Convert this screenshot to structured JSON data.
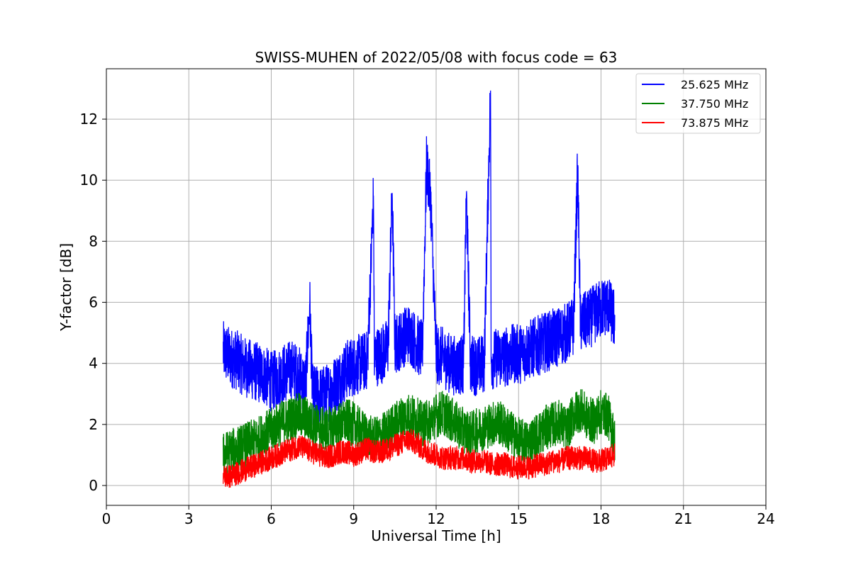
{
  "chart_data": {
    "type": "line",
    "title": "SWISS-MUHEN of 2022/05/08 with focus code = 63",
    "xlabel": "Universal Time [h]",
    "ylabel": "Y-factor [dB]",
    "xlim": [
      0,
      24
    ],
    "ylim": [
      -0.65,
      13.65
    ],
    "xticks": [
      0,
      3,
      6,
      9,
      12,
      15,
      18,
      21,
      24
    ],
    "yticks": [
      0,
      2,
      4,
      6,
      8,
      10,
      12
    ],
    "grid": true,
    "legend_position": "top-right",
    "series": [
      {
        "name": "25.625 MHz",
        "color": "#0000ff",
        "x": [
          4.25,
          4.5,
          4.75,
          5.0,
          5.25,
          5.5,
          5.75,
          6.0,
          6.25,
          6.5,
          6.75,
          7.0,
          7.25,
          7.4,
          7.5,
          7.75,
          8.0,
          8.25,
          8.5,
          8.75,
          9.0,
          9.25,
          9.5,
          9.72,
          9.75,
          10.0,
          10.25,
          10.4,
          10.5,
          10.75,
          11.0,
          11.25,
          11.5,
          11.65,
          11.8,
          12.0,
          12.25,
          12.5,
          12.75,
          13.0,
          13.1,
          13.25,
          13.5,
          13.75,
          13.98,
          14.0,
          14.25,
          14.5,
          14.75,
          15.0,
          15.25,
          15.5,
          15.75,
          16.0,
          16.25,
          16.5,
          16.75,
          17.0,
          17.15,
          17.25,
          17.5,
          17.75,
          18.0,
          18.25,
          18.5
        ],
        "y": [
          4.4,
          4.2,
          4.1,
          3.9,
          3.8,
          3.7,
          3.6,
          3.4,
          3.5,
          3.7,
          3.8,
          3.6,
          3.3,
          6.0,
          3.0,
          2.9,
          3.0,
          3.2,
          3.5,
          3.8,
          3.9,
          4.0,
          4.1,
          9.5,
          4.2,
          4.3,
          4.5,
          9.6,
          4.6,
          4.8,
          5.0,
          4.7,
          4.4,
          10.5,
          9.4,
          4.3,
          4.2,
          4.0,
          3.9,
          4.0,
          9.6,
          4.0,
          3.9,
          4.0,
          13.0,
          4.1,
          4.2,
          4.2,
          4.3,
          4.3,
          4.4,
          4.5,
          4.6,
          4.7,
          4.8,
          4.9,
          5.0,
          5.2,
          10.4,
          5.3,
          5.4,
          5.6,
          5.8,
          5.9,
          5.4
        ]
      },
      {
        "name": "37.750 MHz",
        "color": "#008000",
        "x": [
          4.25,
          4.5,
          4.75,
          5.0,
          5.25,
          5.5,
          5.75,
          6.0,
          6.25,
          6.5,
          6.75,
          7.0,
          7.25,
          7.5,
          7.75,
          8.0,
          8.25,
          8.5,
          8.75,
          9.0,
          9.25,
          9.5,
          9.75,
          10.0,
          10.25,
          10.5,
          10.75,
          11.0,
          11.25,
          11.5,
          11.75,
          12.0,
          12.25,
          12.5,
          12.75,
          13.0,
          13.25,
          13.5,
          13.75,
          14.0,
          14.25,
          14.5,
          14.75,
          15.0,
          15.25,
          15.5,
          15.75,
          16.0,
          16.25,
          16.5,
          16.75,
          17.0,
          17.25,
          17.5,
          17.75,
          18.0,
          18.25,
          18.5
        ],
        "y": [
          1.0,
          1.1,
          1.2,
          1.3,
          1.4,
          1.5,
          1.7,
          1.8,
          2.0,
          2.1,
          2.2,
          2.3,
          2.2,
          2.0,
          1.9,
          1.8,
          1.9,
          2.0,
          2.1,
          2.0,
          1.8,
          1.6,
          1.5,
          1.6,
          1.8,
          2.0,
          2.2,
          2.3,
          2.2,
          2.0,
          2.1,
          2.3,
          2.4,
          2.2,
          2.0,
          1.8,
          1.7,
          1.8,
          1.9,
          2.0,
          2.1,
          1.9,
          1.7,
          1.5,
          1.4,
          1.5,
          1.7,
          1.9,
          2.0,
          2.1,
          1.8,
          2.3,
          2.5,
          2.2,
          2.1,
          2.4,
          2.3,
          1.5
        ]
      },
      {
        "name": "73.875 MHz",
        "color": "#ff0000",
        "x": [
          4.25,
          4.5,
          4.75,
          5.0,
          5.25,
          5.5,
          5.75,
          6.0,
          6.25,
          6.5,
          6.75,
          7.0,
          7.25,
          7.5,
          7.75,
          8.0,
          8.25,
          8.5,
          8.75,
          9.0,
          9.25,
          9.5,
          9.75,
          10.0,
          10.25,
          10.5,
          10.75,
          11.0,
          11.25,
          11.5,
          11.75,
          12.0,
          12.25,
          12.5,
          12.75,
          13.0,
          13.25,
          13.5,
          13.75,
          14.0,
          14.25,
          14.5,
          14.75,
          15.0,
          15.25,
          15.5,
          15.75,
          16.0,
          16.25,
          16.5,
          16.75,
          17.0,
          17.25,
          17.5,
          17.75,
          18.0,
          18.25,
          18.5
        ],
        "y": [
          0.3,
          0.3,
          0.4,
          0.5,
          0.6,
          0.7,
          0.8,
          0.9,
          1.0,
          1.1,
          1.2,
          1.3,
          1.2,
          1.1,
          1.0,
          0.9,
          1.0,
          1.1,
          1.1,
          1.0,
          1.1,
          1.2,
          1.1,
          1.1,
          1.2,
          1.3,
          1.4,
          1.5,
          1.4,
          1.2,
          1.1,
          1.0,
          0.9,
          0.9,
          0.9,
          0.9,
          0.8,
          0.8,
          0.8,
          0.7,
          0.7,
          0.7,
          0.6,
          0.6,
          0.6,
          0.6,
          0.7,
          0.7,
          0.8,
          0.8,
          0.9,
          0.9,
          0.9,
          0.9,
          0.8,
          0.8,
          0.9,
          1.0
        ]
      }
    ]
  }
}
